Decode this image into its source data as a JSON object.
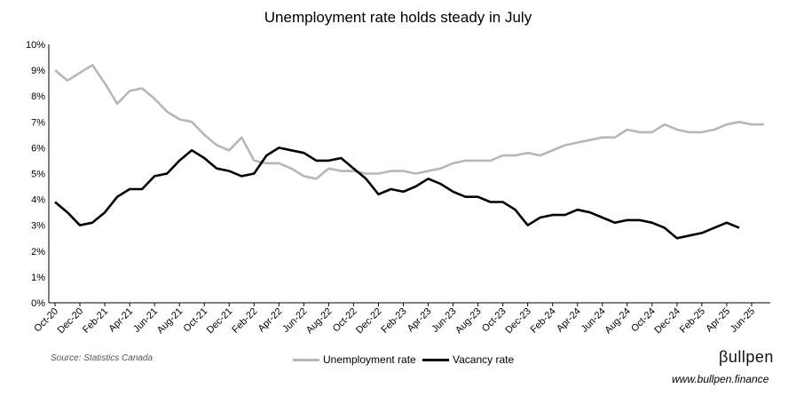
{
  "title": "Unemployment rate holds steady in July",
  "source": "Source: Statistics Canada",
  "brand": {
    "logo": "βullpen",
    "url": "www.bullpen.finance"
  },
  "colors": {
    "unemployment": "#b7b7b7",
    "vacancy": "#000000",
    "axis": "#000000"
  },
  "chart_data": {
    "type": "line",
    "title": "Unemployment rate holds steady in July",
    "xlabel": "",
    "ylabel": "",
    "ylim": [
      0,
      10
    ],
    "yticks": [
      "0%",
      "1%",
      "2%",
      "3%",
      "4%",
      "5%",
      "6%",
      "7%",
      "8%",
      "9%",
      "10%"
    ],
    "x": [
      "Oct-20",
      "Nov-20",
      "Dec-20",
      "Jan-21",
      "Feb-21",
      "Mar-21",
      "Apr-21",
      "May-21",
      "Jun-21",
      "Jul-21",
      "Aug-21",
      "Sep-21",
      "Oct-21",
      "Nov-21",
      "Dec-21",
      "Jan-22",
      "Feb-22",
      "Mar-22",
      "Apr-22",
      "May-22",
      "Jun-22",
      "Jul-22",
      "Aug-22",
      "Sep-22",
      "Oct-22",
      "Nov-22",
      "Dec-22",
      "Jan-23",
      "Feb-23",
      "Mar-23",
      "Apr-23",
      "May-23",
      "Jun-23",
      "Jul-23",
      "Aug-23",
      "Sep-23",
      "Oct-23",
      "Nov-23",
      "Dec-23",
      "Jan-24",
      "Feb-24",
      "Mar-24",
      "Apr-24",
      "May-24",
      "Jun-24",
      "Jul-24",
      "Aug-24",
      "Sep-24",
      "Oct-24",
      "Nov-24",
      "Dec-24",
      "Jan-25",
      "Feb-25",
      "Mar-25",
      "Apr-25",
      "May-25",
      "Jun-25",
      "Jul-25"
    ],
    "xtick_labels": [
      "Oct-20",
      "Dec-20",
      "Feb-21",
      "Apr-21",
      "Jun-21",
      "Aug-21",
      "Oct-21",
      "Dec-21",
      "Feb-22",
      "Apr-22",
      "Jun-22",
      "Aug-22",
      "Oct-22",
      "Dec-22",
      "Feb-23",
      "Apr-23",
      "Jun-23",
      "Aug-23",
      "Oct-23",
      "Dec-23",
      "Feb-24",
      "Apr-24",
      "Jun-24",
      "Aug-24",
      "Oct-24",
      "Dec-24",
      "Feb-25",
      "Apr-25",
      "Jun-25"
    ],
    "series": [
      {
        "name": "Unemployment rate",
        "values": [
          9.0,
          8.6,
          8.9,
          9.2,
          8.5,
          7.7,
          8.2,
          8.3,
          7.9,
          7.4,
          7.1,
          7.0,
          6.5,
          6.1,
          5.9,
          6.4,
          5.5,
          5.4,
          5.4,
          5.2,
          4.9,
          4.8,
          5.2,
          5.1,
          5.1,
          5.0,
          5.0,
          5.1,
          5.1,
          5.0,
          5.1,
          5.2,
          5.4,
          5.5,
          5.5,
          5.5,
          5.7,
          5.7,
          5.8,
          5.7,
          5.9,
          6.1,
          6.2,
          6.3,
          6.4,
          6.4,
          6.7,
          6.6,
          6.6,
          6.9,
          6.7,
          6.6,
          6.6,
          6.7,
          6.9,
          7.0,
          6.9,
          6.9
        ]
      },
      {
        "name": "Vacancy rate",
        "values": [
          3.9,
          3.5,
          3.0,
          3.1,
          3.5,
          4.1,
          4.4,
          4.4,
          4.9,
          5.0,
          5.5,
          5.9,
          5.6,
          5.2,
          5.1,
          4.9,
          5.0,
          5.7,
          6.0,
          5.9,
          5.8,
          5.5,
          5.5,
          5.6,
          5.2,
          4.8,
          4.2,
          4.4,
          4.3,
          4.5,
          4.8,
          4.6,
          4.3,
          4.1,
          4.1,
          3.9,
          3.9,
          3.6,
          3.0,
          3.3,
          3.4,
          3.4,
          3.6,
          3.5,
          3.3,
          3.1,
          3.2,
          3.2,
          3.1,
          2.9,
          2.5,
          2.6,
          2.7,
          2.9,
          3.1,
          2.9,
          null,
          null
        ]
      }
    ],
    "legend": "bottom",
    "grid": false
  }
}
